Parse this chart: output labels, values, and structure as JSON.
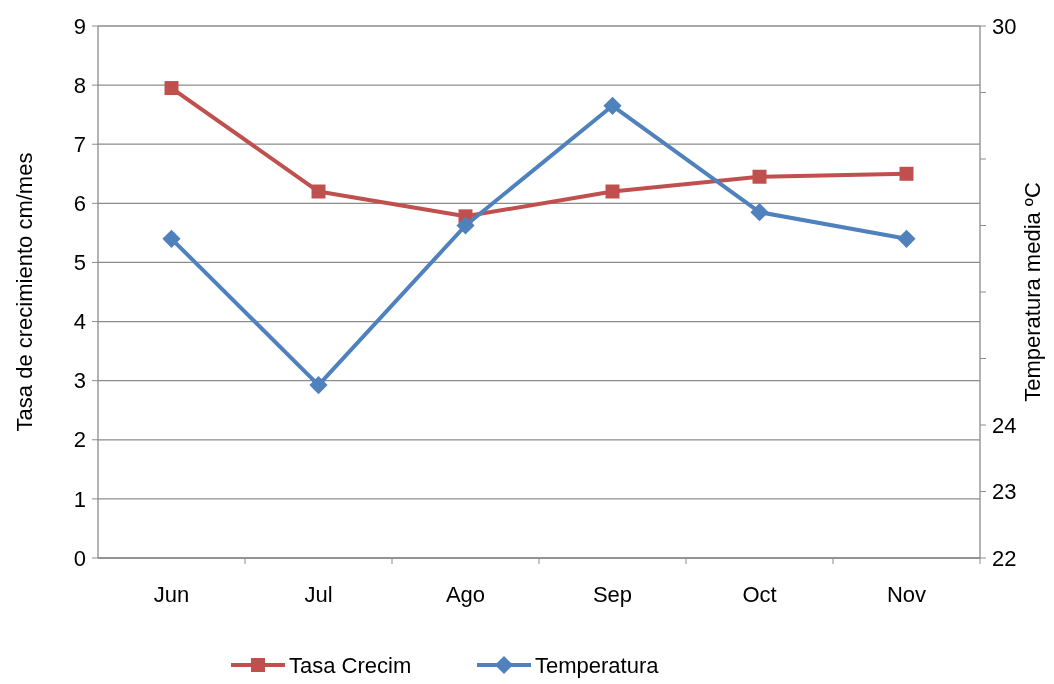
{
  "chart_data": {
    "type": "line",
    "categories": [
      "Jun",
      "Jul",
      "Ago",
      "Sep",
      "Oct",
      "Nov"
    ],
    "ylabel": "Tasa de crecimiento cm/mes",
    "y2label": "Temperatura media ºC",
    "ylim": [
      0,
      9
    ],
    "yticks": [
      0,
      1,
      2,
      3,
      4,
      5,
      6,
      7,
      8,
      9
    ],
    "y2lim": [
      22,
      30
    ],
    "y2ticks": [
      22,
      23,
      24,
      {
        "value": 25,
        "label": null
      },
      {
        "value": 26,
        "label": null
      },
      {
        "value": 27,
        "label": null
      },
      {
        "value": 28,
        "label": null
      },
      {
        "value": 29,
        "label": null
      },
      30
    ],
    "grid": "y",
    "legend": "bottom",
    "series": [
      {
        "name": "Tasa Crecim",
        "color": "#c0504d",
        "marker": "square",
        "values": [
          7.95,
          6.2,
          5.78,
          6.2,
          6.45,
          6.5
        ]
      },
      {
        "name": "Temperatura",
        "color": "#4f81bd",
        "marker": "diamond",
        "axis": "y2",
        "values": [
          26.8,
          24.6,
          27.0,
          28.8,
          27.2,
          26.8
        ]
      }
    ]
  }
}
